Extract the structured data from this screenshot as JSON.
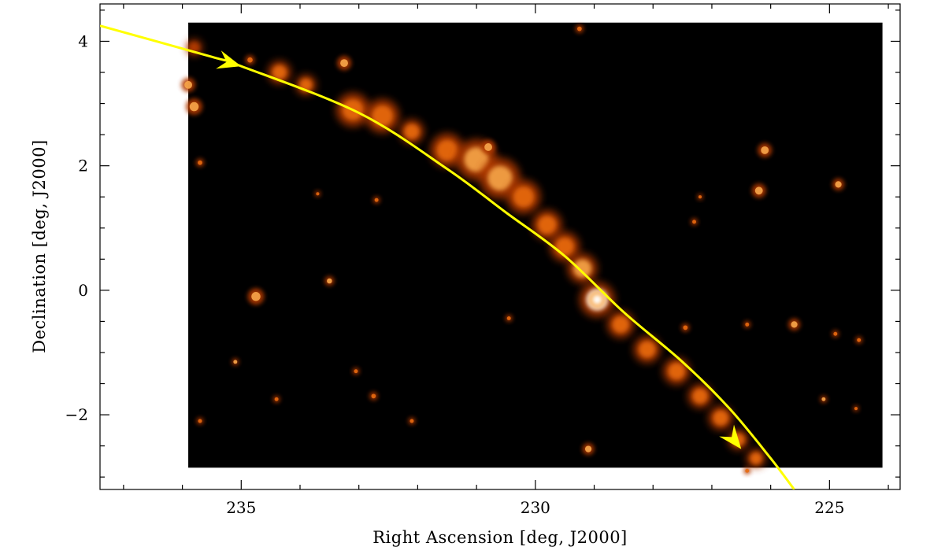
{
  "chart_data": {
    "type": "heatmap",
    "title": "",
    "xlabel": "Right Ascension [deg, J2000]",
    "ylabel": "Declination [deg, J2000]",
    "xlim": [
      237.4,
      223.8
    ],
    "ylim": [
      -3.2,
      4.6
    ],
    "image_extent": {
      "ra": [
        235.9,
        224.1
      ],
      "dec": [
        -2.85,
        4.3
      ]
    },
    "x_ticks": [
      {
        "value": 235,
        "label": "235"
      },
      {
        "value": 230,
        "label": "230"
      },
      {
        "value": 225,
        "label": "225"
      }
    ],
    "y_ticks": [
      {
        "value": 4,
        "label": "4"
      },
      {
        "value": 2,
        "label": "2"
      },
      {
        "value": 0,
        "label": "0"
      },
      {
        "value": -2,
        "label": "−2"
      }
    ],
    "x_minor_step": 1,
    "y_minor_step": 0.5,
    "colormap": [
      "#000000",
      "#5a1200",
      "#b33a00",
      "#e86a10",
      "#f7a64a",
      "#ffffff"
    ],
    "background_color": "#000000",
    "trajectory": {
      "color": "#ffff00",
      "points": [
        [
          237.4,
          4.25
        ],
        [
          235.5,
          3.75
        ],
        [
          235.0,
          3.6
        ],
        [
          233.0,
          2.85
        ],
        [
          231.5,
          1.95
        ],
        [
          230.5,
          1.25
        ],
        [
          229.5,
          0.55
        ],
        [
          228.5,
          -0.35
        ],
        [
          227.5,
          -1.15
        ],
        [
          226.7,
          -1.9
        ],
        [
          226.0,
          -2.7
        ],
        [
          225.6,
          -3.2
        ]
      ],
      "arrows": [
        {
          "at": [
            235.0,
            3.6
          ],
          "toward": [
            237.4,
            4.25
          ]
        },
        {
          "at": [
            226.5,
            -2.55
          ],
          "toward": [
            227.3,
            -1.6
          ]
        }
      ]
    },
    "stream": [
      {
        "ra": 235.8,
        "dec": 3.9,
        "r": 0.12,
        "i": 0.45
      },
      {
        "ra": 234.35,
        "dec": 3.5,
        "r": 0.17,
        "i": 0.55
      },
      {
        "ra": 233.9,
        "dec": 3.3,
        "r": 0.15,
        "i": 0.5
      },
      {
        "ra": 233.1,
        "dec": 2.9,
        "r": 0.25,
        "i": 0.65
      },
      {
        "ra": 232.6,
        "dec": 2.8,
        "r": 0.25,
        "i": 0.62
      },
      {
        "ra": 232.1,
        "dec": 2.55,
        "r": 0.18,
        "i": 0.55
      },
      {
        "ra": 231.5,
        "dec": 2.25,
        "r": 0.25,
        "i": 0.68
      },
      {
        "ra": 231.0,
        "dec": 2.1,
        "r": 0.3,
        "i": 0.72
      },
      {
        "ra": 230.6,
        "dec": 1.8,
        "r": 0.3,
        "i": 0.7
      },
      {
        "ra": 230.2,
        "dec": 1.5,
        "r": 0.25,
        "i": 0.68
      },
      {
        "ra": 229.8,
        "dec": 1.05,
        "r": 0.22,
        "i": 0.65
      },
      {
        "ra": 229.5,
        "dec": 0.7,
        "r": 0.22,
        "i": 0.65
      },
      {
        "ra": 229.2,
        "dec": 0.35,
        "r": 0.22,
        "i": 0.7
      },
      {
        "ra": 228.95,
        "dec": -0.15,
        "r": 0.26,
        "i": 1.0
      },
      {
        "ra": 228.55,
        "dec": -0.55,
        "r": 0.2,
        "i": 0.62
      },
      {
        "ra": 228.1,
        "dec": -0.95,
        "r": 0.2,
        "i": 0.6
      },
      {
        "ra": 227.6,
        "dec": -1.3,
        "r": 0.2,
        "i": 0.6
      },
      {
        "ra": 227.2,
        "dec": -1.7,
        "r": 0.18,
        "i": 0.58
      },
      {
        "ra": 226.85,
        "dec": -2.05,
        "r": 0.18,
        "i": 0.56
      },
      {
        "ra": 226.55,
        "dec": -2.4,
        "r": 0.15,
        "i": 0.5
      },
      {
        "ra": 226.25,
        "dec": -2.7,
        "r": 0.14,
        "i": 0.55
      }
    ],
    "sources": [
      {
        "ra": 235.9,
        "dec": 3.3,
        "r": 0.12,
        "i": 0.45
      },
      {
        "ra": 235.8,
        "dec": 2.95,
        "r": 0.14,
        "i": 0.5
      },
      {
        "ra": 235.7,
        "dec": 2.05,
        "r": 0.07,
        "i": 0.4
      },
      {
        "ra": 234.85,
        "dec": 3.7,
        "r": 0.08,
        "i": 0.35
      },
      {
        "ra": 233.25,
        "dec": 3.65,
        "r": 0.12,
        "i": 0.45
      },
      {
        "ra": 230.8,
        "dec": 2.3,
        "r": 0.12,
        "i": 0.55
      },
      {
        "ra": 229.25,
        "dec": 4.2,
        "r": 0.07,
        "i": 0.3
      },
      {
        "ra": 226.1,
        "dec": 2.25,
        "r": 0.12,
        "i": 0.55
      },
      {
        "ra": 226.2,
        "dec": 1.6,
        "r": 0.12,
        "i": 0.55
      },
      {
        "ra": 224.85,
        "dec": 1.7,
        "r": 0.1,
        "i": 0.45
      },
      {
        "ra": 234.75,
        "dec": -0.1,
        "r": 0.14,
        "i": 0.5
      },
      {
        "ra": 233.5,
        "dec": 0.15,
        "r": 0.08,
        "i": 0.6
      },
      {
        "ra": 235.1,
        "dec": -1.15,
        "r": 0.06,
        "i": 0.55
      },
      {
        "ra": 229.1,
        "dec": -2.55,
        "r": 0.1,
        "i": 0.45
      },
      {
        "ra": 225.6,
        "dec": -0.55,
        "r": 0.1,
        "i": 0.45
      },
      {
        "ra": 225.1,
        "dec": -1.75,
        "r": 0.06,
        "i": 0.5
      },
      {
        "ra": 232.75,
        "dec": -1.7,
        "r": 0.07,
        "i": 0.35
      },
      {
        "ra": 230.45,
        "dec": -0.45,
        "r": 0.06,
        "i": 0.35
      },
      {
        "ra": 232.7,
        "dec": 1.45,
        "r": 0.06,
        "i": 0.3
      },
      {
        "ra": 227.45,
        "dec": -0.6,
        "r": 0.07,
        "i": 0.3
      },
      {
        "ra": 224.5,
        "dec": -0.8,
        "r": 0.06,
        "i": 0.3
      },
      {
        "ra": 233.7,
        "dec": 1.55,
        "r": 0.05,
        "i": 0.28
      },
      {
        "ra": 226.4,
        "dec": -2.9,
        "r": 0.06,
        "i": 0.3
      },
      {
        "ra": 235.7,
        "dec": -2.1,
        "r": 0.06,
        "i": 0.3
      },
      {
        "ra": 234.4,
        "dec": -1.75,
        "r": 0.06,
        "i": 0.3
      },
      {
        "ra": 227.3,
        "dec": 1.1,
        "r": 0.06,
        "i": 0.3
      },
      {
        "ra": 227.2,
        "dec": 1.5,
        "r": 0.05,
        "i": 0.28
      },
      {
        "ra": 224.9,
        "dec": -0.7,
        "r": 0.06,
        "i": 0.3
      },
      {
        "ra": 233.05,
        "dec": -1.3,
        "r": 0.06,
        "i": 0.3
      },
      {
        "ra": 232.1,
        "dec": -2.1,
        "r": 0.06,
        "i": 0.28
      },
      {
        "ra": 224.55,
        "dec": -1.9,
        "r": 0.05,
        "i": 0.28
      },
      {
        "ra": 226.4,
        "dec": -0.55,
        "r": 0.06,
        "i": 0.3
      }
    ]
  }
}
